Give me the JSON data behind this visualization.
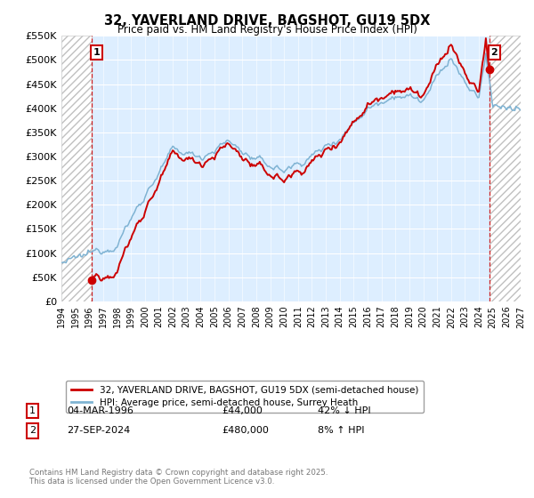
{
  "title": "32, YAVERLAND DRIVE, BAGSHOT, GU19 5DX",
  "subtitle": "Price paid vs. HM Land Registry's House Price Index (HPI)",
  "legend_line1": "32, YAVERLAND DRIVE, BAGSHOT, GU19 5DX (semi-detached house)",
  "legend_line2": "HPI: Average price, semi-detached house, Surrey Heath",
  "point1_date": "04-MAR-1996",
  "point1_price": "£44,000",
  "point1_hpi": "42% ↓ HPI",
  "point2_date": "27-SEP-2024",
  "point2_price": "£480,000",
  "point2_hpi": "8% ↑ HPI",
  "footer": "Contains HM Land Registry data © Crown copyright and database right 2025.\nThis data is licensed under the Open Government Licence v3.0.",
  "bg_color": "#ddeeff",
  "grid_color": "#ffffff",
  "red_line_color": "#cc0000",
  "blue_line_color": "#7fb3d3",
  "point_color": "#cc0000",
  "dashed_line_color": "#cc0000",
  "ylim_min": 0,
  "ylim_max": 550000,
  "x_start_year": 1994,
  "x_end_year": 2027,
  "year1": 1996.17,
  "year2": 2024.75,
  "price1": 44000,
  "price2": 480000
}
